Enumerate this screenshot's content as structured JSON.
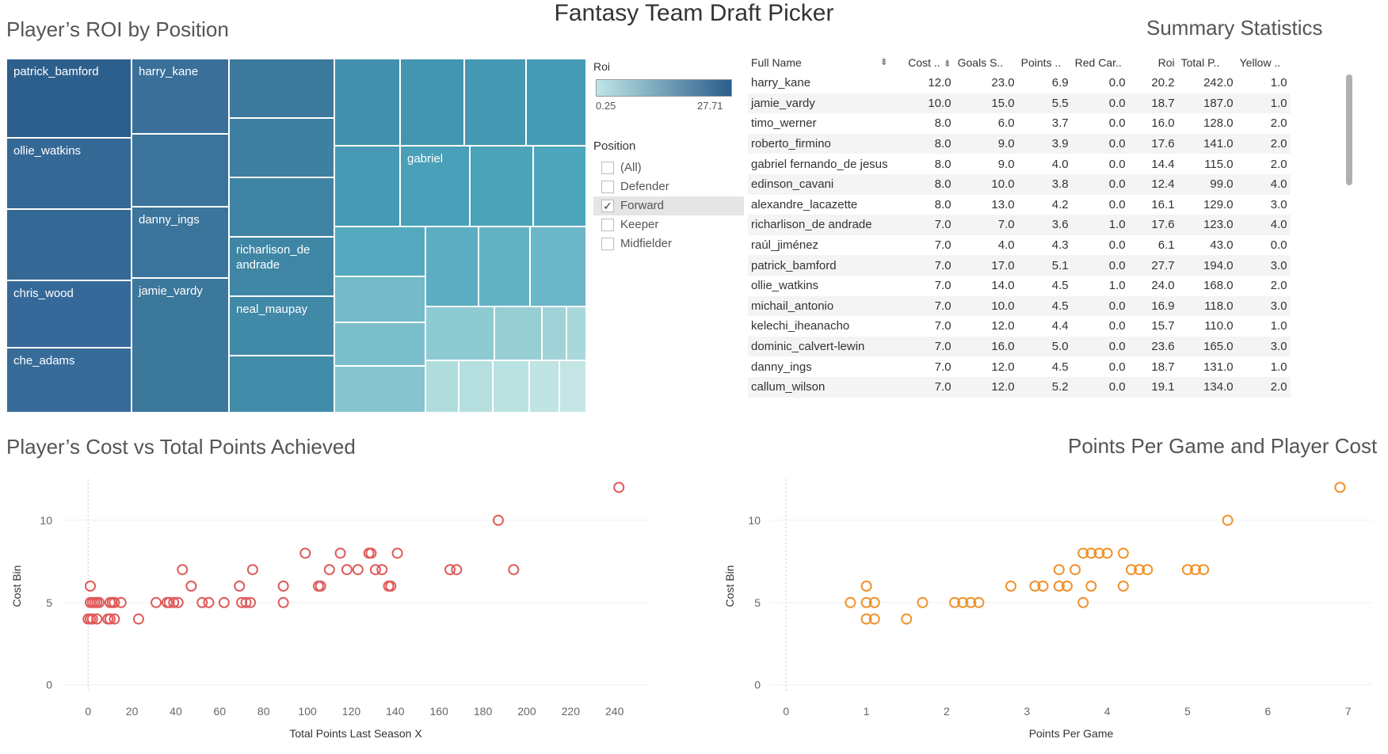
{
  "header": {
    "title": "Fantasy Team Draft Picker"
  },
  "treemap_section": {
    "title": "Player’s ROI by Position",
    "cells": [
      {
        "label": "patrick_bamford",
        "color": "#2d5f8d"
      },
      {
        "label": "ollie_watkins",
        "color": "#346895"
      },
      {
        "label": "",
        "color": "#346895"
      },
      {
        "label": "chris_wood",
        "color": "#36699a"
      },
      {
        "label": "che_adams",
        "color": "#376c98"
      },
      {
        "label": "harry_kane",
        "color": "#3a6f99"
      },
      {
        "label": "",
        "color": "#3b739b"
      },
      {
        "label": "danny_ings",
        "color": "#3b759c"
      },
      {
        "label": "jamie_vardy",
        "color": "#3c779c"
      },
      {
        "label": "",
        "color": "#3d799d"
      },
      {
        "label": "",
        "color": "#3e80a1"
      },
      {
        "label": "",
        "color": "#3e83a3"
      },
      {
        "label": "richarlison_de andrade",
        "color": "#3f86a5"
      },
      {
        "label": "neal_maupay",
        "color": "#4089a7"
      },
      {
        "label": "",
        "color": "#418ca9"
      },
      {
        "label": "",
        "color": "#4390ac"
      },
      {
        "label": "",
        "color": "#4395b0"
      },
      {
        "label": "",
        "color": "#4498b2"
      },
      {
        "label": "",
        "color": "#459bb4"
      },
      {
        "label": "",
        "color": "#4799b4"
      },
      {
        "label": "gabriel",
        "color": "#49a0b8"
      },
      {
        "label": "",
        "color": "#4ba3ba"
      },
      {
        "label": "",
        "color": "#4ea6bc"
      },
      {
        "label": "",
        "color": "#55a9be"
      },
      {
        "label": "",
        "color": "#5cadc1"
      },
      {
        "label": "",
        "color": "#63b2c4"
      },
      {
        "label": "",
        "color": "#6bb6c7"
      },
      {
        "label": "",
        "color": "#74bac9"
      },
      {
        "label": "",
        "color": "#7cbfcc"
      },
      {
        "label": "",
        "color": "#86c4cf"
      },
      {
        "label": "",
        "color": "#8ecad2"
      },
      {
        "label": "",
        "color": "#97ced4"
      },
      {
        "label": "",
        "color": "#a0d2d7"
      },
      {
        "label": "",
        "color": "#a8d8da"
      },
      {
        "label": "",
        "color": "#b0dcdc"
      },
      {
        "label": "",
        "color": "#b5dfdf"
      },
      {
        "label": "",
        "color": "#bae2e1"
      },
      {
        "label": "",
        "color": "#bfe4e3"
      },
      {
        "label": "",
        "color": "#c3e6e5"
      }
    ]
  },
  "legend": {
    "roi_title": "Roi",
    "roi_min": "0.25",
    "roi_max": "27.71",
    "position_title": "Position",
    "options": [
      {
        "label": "(All)",
        "checked": false
      },
      {
        "label": "Defender",
        "checked": false
      },
      {
        "label": "Forward",
        "checked": true
      },
      {
        "label": "Keeper",
        "checked": false
      },
      {
        "label": "Midfielder",
        "checked": false
      }
    ]
  },
  "summary": {
    "title": "Summary Statistics",
    "columns": [
      "Full Name",
      "Cost ..",
      "Goals S..",
      "Points ..",
      "Red Car..",
      "Roi",
      "Total P..",
      "Yellow .."
    ],
    "rows": [
      [
        "harry_kane",
        "12.0",
        "23.0",
        "6.9",
        "0.0",
        "20.2",
        "242.0",
        "1.0"
      ],
      [
        "jamie_vardy",
        "10.0",
        "15.0",
        "5.5",
        "0.0",
        "18.7",
        "187.0",
        "1.0"
      ],
      [
        "timo_werner",
        "8.0",
        "6.0",
        "3.7",
        "0.0",
        "16.0",
        "128.0",
        "2.0"
      ],
      [
        "roberto_firmino",
        "8.0",
        "9.0",
        "3.9",
        "0.0",
        "17.6",
        "141.0",
        "2.0"
      ],
      [
        "gabriel fernando_de jesus",
        "8.0",
        "9.0",
        "4.0",
        "0.0",
        "14.4",
        "115.0",
        "2.0"
      ],
      [
        "edinson_cavani",
        "8.0",
        "10.0",
        "3.8",
        "0.0",
        "12.4",
        "99.0",
        "4.0"
      ],
      [
        "alexandre_lacazette",
        "8.0",
        "13.0",
        "4.2",
        "0.0",
        "16.1",
        "129.0",
        "3.0"
      ],
      [
        "richarlison_de andrade",
        "7.0",
        "7.0",
        "3.6",
        "1.0",
        "17.6",
        "123.0",
        "4.0"
      ],
      [
        "raúl_jiménez",
        "7.0",
        "4.0",
        "4.3",
        "0.0",
        "6.1",
        "43.0",
        "0.0"
      ],
      [
        "patrick_bamford",
        "7.0",
        "17.0",
        "5.1",
        "0.0",
        "27.7",
        "194.0",
        "3.0"
      ],
      [
        "ollie_watkins",
        "7.0",
        "14.0",
        "4.5",
        "1.0",
        "24.0",
        "168.0",
        "2.0"
      ],
      [
        "michail_antonio",
        "7.0",
        "10.0",
        "4.5",
        "0.0",
        "16.9",
        "118.0",
        "3.0"
      ],
      [
        "kelechi_iheanacho",
        "7.0",
        "12.0",
        "4.4",
        "0.0",
        "15.7",
        "110.0",
        "1.0"
      ],
      [
        "dominic_calvert-lewin",
        "7.0",
        "16.0",
        "5.0",
        "0.0",
        "23.6",
        "165.0",
        "3.0"
      ],
      [
        "danny_ings",
        "7.0",
        "12.0",
        "4.5",
        "0.0",
        "18.7",
        "131.0",
        "1.0"
      ],
      [
        "callum_wilson",
        "7.0",
        "12.0",
        "5.2",
        "0.0",
        "19.1",
        "134.0",
        "2.0"
      ]
    ]
  },
  "chart_data": [
    {
      "type": "scatter",
      "title": "Player’s Cost vs Total Points Achieved",
      "xlabel": "Total Points Last Season X",
      "ylabel": "Cost Bin",
      "xlim": [
        -12,
        256
      ],
      "ylim": [
        -0.5,
        12.5
      ],
      "xticks": [
        0,
        20,
        40,
        60,
        80,
        100,
        120,
        140,
        160,
        180,
        200,
        220,
        240
      ],
      "yticks": [
        0,
        5,
        10
      ],
      "color": "#e05a5a",
      "points": [
        [
          0,
          4
        ],
        [
          1,
          4
        ],
        [
          2,
          4
        ],
        [
          4,
          4
        ],
        [
          1,
          5
        ],
        [
          2,
          5
        ],
        [
          3,
          5
        ],
        [
          4,
          5
        ],
        [
          5,
          5
        ],
        [
          1,
          6
        ],
        [
          9,
          4
        ],
        [
          10,
          4
        ],
        [
          12,
          4
        ],
        [
          10,
          5
        ],
        [
          11,
          5
        ],
        [
          12,
          5
        ],
        [
          15,
          5
        ],
        [
          23,
          4
        ],
        [
          31,
          5
        ],
        [
          36,
          5
        ],
        [
          37,
          5
        ],
        [
          39,
          5
        ],
        [
          41,
          5
        ],
        [
          43,
          7
        ],
        [
          47,
          6
        ],
        [
          52,
          5
        ],
        [
          55,
          5
        ],
        [
          62,
          5
        ],
        [
          69,
          6
        ],
        [
          70,
          5
        ],
        [
          72,
          5
        ],
        [
          74,
          5
        ],
        [
          75,
          7
        ],
        [
          89,
          6
        ],
        [
          89,
          5
        ],
        [
          99,
          8
        ],
        [
          105,
          6
        ],
        [
          106,
          6
        ],
        [
          110,
          7
        ],
        [
          115,
          8
        ],
        [
          118,
          7
        ],
        [
          123,
          7
        ],
        [
          128,
          8
        ],
        [
          129,
          8
        ],
        [
          131,
          7
        ],
        [
          134,
          7
        ],
        [
          137,
          6
        ],
        [
          138,
          6
        ],
        [
          141,
          8
        ],
        [
          165,
          7
        ],
        [
          168,
          7
        ],
        [
          187,
          10
        ],
        [
          194,
          7
        ],
        [
          242,
          12
        ]
      ]
    },
    {
      "type": "scatter",
      "title": "Points Per Game and Player Cost",
      "xlabel": "Points Per Game",
      "ylabel": "Cost Bin",
      "xlim": [
        -0.2,
        7.3
      ],
      "ylim": [
        -0.5,
        12.5
      ],
      "xticks": [
        0,
        1,
        2,
        3,
        4,
        5,
        6,
        7
      ],
      "yticks": [
        0,
        5,
        10
      ],
      "color": "#f0922b",
      "points": [
        [
          0.8,
          5
        ],
        [
          1.0,
          5
        ],
        [
          1.1,
          5
        ],
        [
          1.0,
          4
        ],
        [
          1.1,
          4
        ],
        [
          1.0,
          6
        ],
        [
          1.5,
          4
        ],
        [
          1.7,
          5
        ],
        [
          2.1,
          5
        ],
        [
          2.2,
          5
        ],
        [
          2.3,
          5
        ],
        [
          2.4,
          5
        ],
        [
          2.8,
          6
        ],
        [
          3.1,
          6
        ],
        [
          3.2,
          6
        ],
        [
          3.4,
          7
        ],
        [
          3.4,
          6
        ],
        [
          3.5,
          6
        ],
        [
          3.6,
          7
        ],
        [
          3.7,
          5
        ],
        [
          3.7,
          8
        ],
        [
          3.8,
          8
        ],
        [
          3.9,
          8
        ],
        [
          4.0,
          8
        ],
        [
          3.8,
          6
        ],
        [
          4.2,
          8
        ],
        [
          4.2,
          6
        ],
        [
          4.3,
          7
        ],
        [
          4.4,
          7
        ],
        [
          4.5,
          7
        ],
        [
          5.0,
          7
        ],
        [
          5.1,
          7
        ],
        [
          5.2,
          7
        ],
        [
          5.5,
          10
        ],
        [
          6.9,
          12
        ]
      ]
    }
  ]
}
